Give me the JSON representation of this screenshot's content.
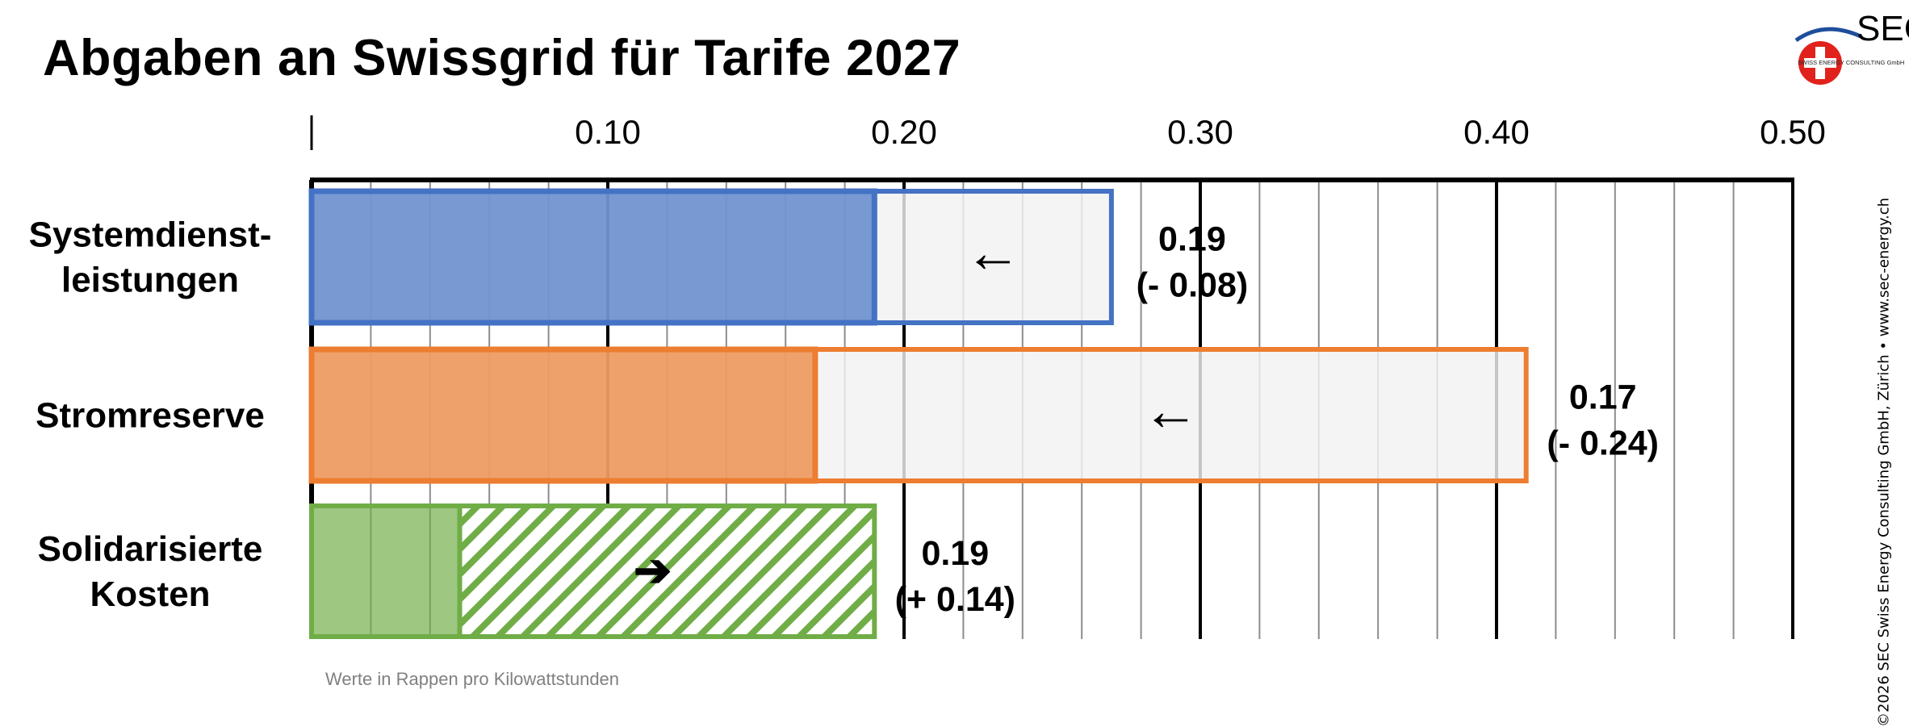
{
  "title": "Abgaben an Swissgrid für Tarife 2027",
  "logo": {
    "text": "SEC",
    "subtitle": "SWISS ENERGY CONSULTING GmbH"
  },
  "copyright": "©2026 SEC Swiss Energy Consulting GmbH, Zürich • www.sec-energy.ch",
  "footnote": "Werte in Rappen pro Kilowattstunden",
  "chart_data": {
    "type": "bar",
    "orientation": "horizontal",
    "title": "Abgaben an Swissgrid für Tarife 2027",
    "xlabel": "Werte in Rappen pro Kilowattstunden",
    "xlim": [
      0,
      0.5
    ],
    "major_ticks": [
      0.1,
      0.2,
      0.3,
      0.4,
      0.5
    ],
    "tick_labels": [
      "0.10",
      "0.20",
      "0.30",
      "0.40",
      "0.50"
    ],
    "minor_step": 0.02,
    "grid": true,
    "categories": [
      {
        "label_lines": [
          "Systemdienst-",
          "leistungen"
        ],
        "value_2027": 0.19,
        "previous": 0.27,
        "change": -0.08,
        "value_label": "0.19",
        "change_label": "(- 0.08)",
        "arrow": "←",
        "color": "#4472c4",
        "fill": "#7b9dd4",
        "style": "decrease"
      },
      {
        "label_lines": [
          "Stromreserve"
        ],
        "value_2027": 0.17,
        "previous": 0.41,
        "change": -0.24,
        "value_label": "0.17",
        "change_label": "(- 0.24)",
        "arrow": "←",
        "color": "#ed7d31",
        "fill": "#f1a66f",
        "style": "decrease"
      },
      {
        "label_lines": [
          "Solidarisierte",
          "Kosten"
        ],
        "value_2027": 0.19,
        "previous": 0.05,
        "change": 0.14,
        "value_label": "0.19",
        "change_label": "(+ 0.14)",
        "arrow": "➔",
        "color": "#70ad47",
        "fill": "#9cc57f",
        "style": "increase"
      }
    ]
  }
}
